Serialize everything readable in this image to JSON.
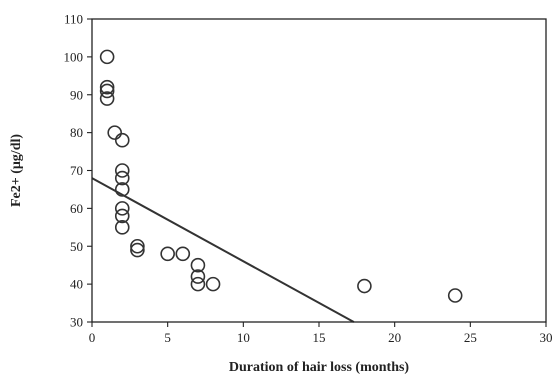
{
  "chart_data": {
    "type": "scatter",
    "title": "",
    "xlabel": "Duration of hair loss (months)",
    "ylabel": "Fe2+ (μg/dl)",
    "xlim": [
      0,
      30
    ],
    "ylim": [
      30,
      110
    ],
    "x_ticks": [
      "0",
      "5",
      "10",
      "15",
      "20",
      "25",
      "30"
    ],
    "y_ticks": [
      "30",
      "40",
      "50",
      "60",
      "70",
      "80",
      "90",
      "100",
      "110"
    ],
    "grid": false,
    "legend": "none",
    "marker": "open-circle",
    "points": [
      {
        "x": 1,
        "y": 100
      },
      {
        "x": 1,
        "y": 92
      },
      {
        "x": 1,
        "y": 91
      },
      {
        "x": 1,
        "y": 89
      },
      {
        "x": 1.5,
        "y": 80
      },
      {
        "x": 2,
        "y": 78
      },
      {
        "x": 2,
        "y": 70
      },
      {
        "x": 2,
        "y": 68
      },
      {
        "x": 2,
        "y": 65
      },
      {
        "x": 2,
        "y": 60
      },
      {
        "x": 2,
        "y": 58
      },
      {
        "x": 2,
        "y": 55
      },
      {
        "x": 3,
        "y": 50
      },
      {
        "x": 3,
        "y": 49
      },
      {
        "x": 5,
        "y": 48
      },
      {
        "x": 6,
        "y": 48
      },
      {
        "x": 7,
        "y": 45
      },
      {
        "x": 7,
        "y": 42
      },
      {
        "x": 7,
        "y": 40
      },
      {
        "x": 8,
        "y": 40
      },
      {
        "x": 18,
        "y": 39.5
      },
      {
        "x": 24,
        "y": 37
      }
    ],
    "trendline": {
      "x": [
        0,
        17.3
      ],
      "y": [
        68,
        30
      ]
    }
  }
}
